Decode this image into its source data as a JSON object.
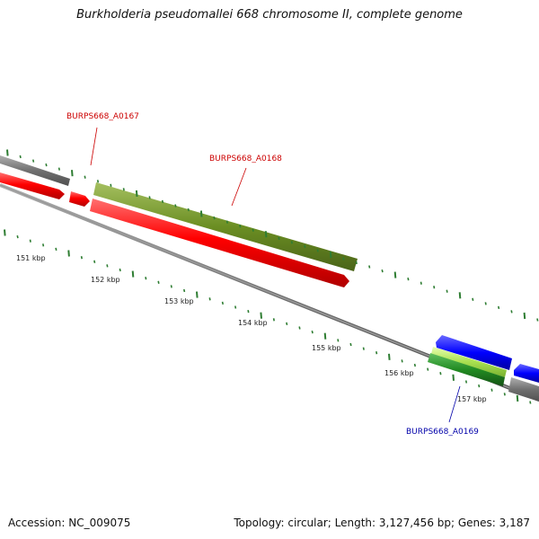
{
  "title": "Burkholderia pseudomallei 668 chromosome II, complete genome",
  "accession_text": "Accession: NC_009075",
  "summary_text": "Topology: circular; Length: 3,127,456 bp; Genes: 3,187",
  "ruler": {
    "tick_color": "#2e7d32",
    "labels": [
      "151 kbp",
      "152 kbp",
      "153 kbp",
      "154 kbp",
      "155 kbp",
      "156 kbp",
      "157 kbp"
    ]
  },
  "genes": [
    {
      "label": "BURPS668_A0167",
      "color": "#cc0000"
    },
    {
      "label": "BURPS668_A0168",
      "color": "#cc0000"
    },
    {
      "label": "BURPS668_A0169",
      "color": "#0000aa"
    }
  ],
  "feature_colors": {
    "cds": "#ff0000",
    "gene": "#6b8e23",
    "gene_blue": "#0000ff",
    "rna": "#99dd44",
    "other": "#228b22",
    "neighbor": "#707070",
    "backbone": "#808080"
  }
}
